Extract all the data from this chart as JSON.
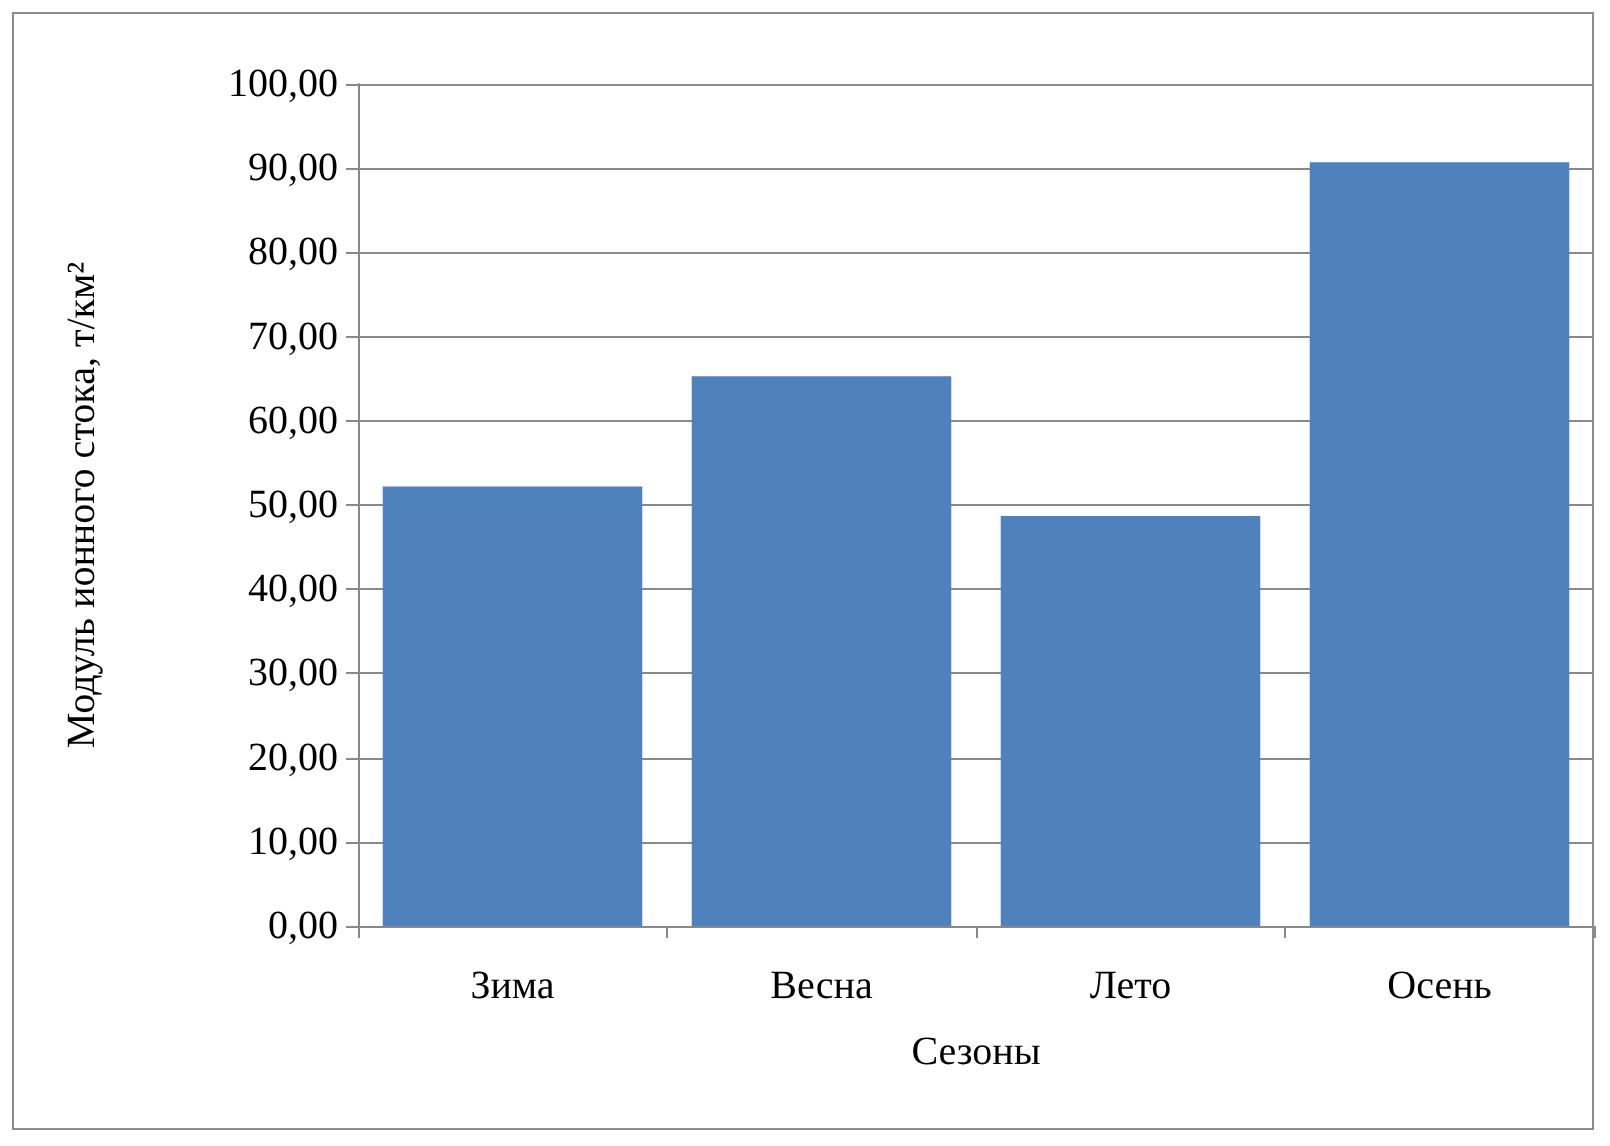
{
  "chart_data": {
    "type": "bar",
    "xlabel": "Сезоны",
    "ylabel": "Модуль ионного стока, т/км²",
    "categories": [
      "Зима",
      "Весна",
      "Лето",
      "Осень"
    ],
    "values": [
      52.2,
      65.3,
      48.7,
      90.7
    ],
    "color": "#4f81bd",
    "ylim": [
      0,
      100
    ],
    "yticks": [
      {
        "value": 0,
        "label": "0,00"
      },
      {
        "value": 10,
        "label": "10,00"
      },
      {
        "value": 20,
        "label": "20,00"
      },
      {
        "value": 30,
        "label": "30,00"
      },
      {
        "value": 40,
        "label": "40,00"
      },
      {
        "value": 50,
        "label": "50,00"
      },
      {
        "value": 60,
        "label": "60,00"
      },
      {
        "value": 70,
        "label": "70,00"
      },
      {
        "value": 80,
        "label": "80,00"
      },
      {
        "value": 90,
        "label": "90,00"
      },
      {
        "value": 100,
        "label": "100,00"
      }
    ],
    "grid": "y"
  }
}
